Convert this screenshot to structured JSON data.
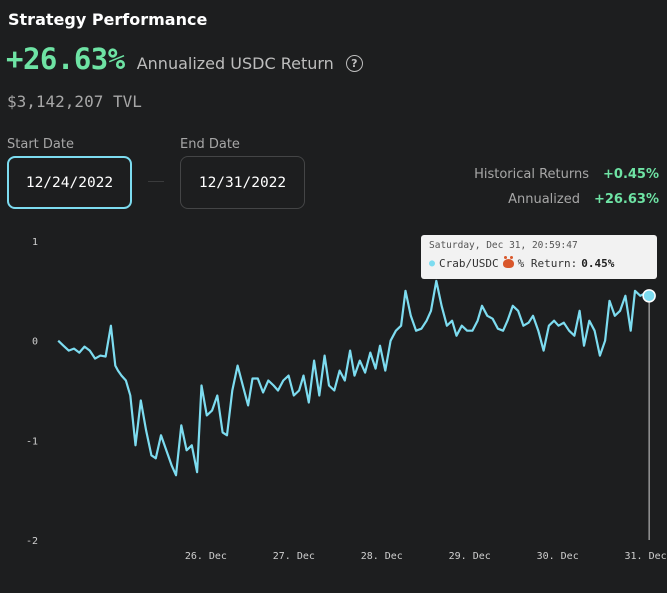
{
  "header": {
    "title": "Strategy Performance",
    "annualized_return": "+26.63%",
    "return_label": "Annualized USDC Return",
    "help_icon": "question-circle-icon",
    "tvl": "$3,142,207 TVL"
  },
  "dates": {
    "start_label": "Start Date",
    "start_value": "12/24/2022",
    "end_label": "End Date",
    "end_value": "12/31/2022"
  },
  "stats": {
    "historical_label": "Historical Returns",
    "historical_value": "+0.45%",
    "annualized_label": "Annualized",
    "annualized_value": "+26.63%"
  },
  "tooltip": {
    "time": "Saturday, Dec 31, 20:59:47",
    "series": "Crab/USDC",
    "icon": "crab-icon",
    "metric": "% Return:",
    "value": "0.45%"
  },
  "colors": {
    "line": "#7ddcf0",
    "positive": "#6ee3a4",
    "background": "#1d1e1f"
  },
  "chart_data": {
    "type": "line",
    "title": "",
    "xlabel": "",
    "ylabel": "",
    "grid": false,
    "ylim": [
      -2,
      1
    ],
    "yticks": [
      "1",
      "0",
      "-1",
      "-2"
    ],
    "xlim": [
      0.25,
      7.05
    ],
    "xticks": [
      {
        "x": 2,
        "label": "26. Dec"
      },
      {
        "x": 3,
        "label": "27. Dec"
      },
      {
        "x": 4,
        "label": "28. Dec"
      },
      {
        "x": 5,
        "label": "29. Dec"
      },
      {
        "x": 6,
        "label": "30. Dec"
      },
      {
        "x": 7,
        "label": "31. Dec"
      }
    ],
    "series": [
      {
        "name": "Crab/USDC",
        "x": [
          0.32,
          0.38,
          0.44,
          0.5,
          0.56,
          0.62,
          0.68,
          0.74,
          0.8,
          0.86,
          0.92,
          0.97,
          1.0,
          1.04,
          1.09,
          1.14,
          1.2,
          1.26,
          1.32,
          1.38,
          1.43,
          1.49,
          1.55,
          1.61,
          1.66,
          1.72,
          1.78,
          1.84,
          1.9,
          1.95,
          2.01,
          2.07,
          2.13,
          2.19,
          2.24,
          2.3,
          2.36,
          2.42,
          2.48,
          2.53,
          2.59,
          2.65,
          2.71,
          2.77,
          2.82,
          2.88,
          2.94,
          3.0,
          3.06,
          3.11,
          3.17,
          3.23,
          3.29,
          3.35,
          3.4,
          3.46,
          3.52,
          3.58,
          3.64,
          3.69,
          3.75,
          3.81,
          3.87,
          3.93,
          3.98,
          4.04,
          4.1,
          4.16,
          4.22,
          4.27,
          4.33,
          4.39,
          4.45,
          4.51,
          4.56,
          4.62,
          4.68,
          4.74,
          4.8,
          4.85,
          4.91,
          4.97,
          5.03,
          5.09,
          5.14,
          5.2,
          5.26,
          5.32,
          5.38,
          5.43,
          5.49,
          5.55,
          5.61,
          5.67,
          5.72,
          5.78,
          5.84,
          5.9,
          5.96,
          6.01,
          6.07,
          6.13,
          6.19,
          6.25,
          6.3,
          6.36,
          6.42,
          6.48,
          6.54,
          6.59,
          6.65,
          6.71,
          6.77,
          6.83,
          6.88,
          6.94,
          7.0,
          7.04
        ],
        "y": [
          0.0,
          -0.05,
          -0.1,
          -0.08,
          -0.12,
          -0.06,
          -0.1,
          -0.18,
          -0.15,
          -0.16,
          0.15,
          -0.25,
          -0.3,
          -0.35,
          -0.4,
          -0.55,
          -1.05,
          -0.6,
          -0.9,
          -1.15,
          -1.18,
          -0.95,
          -1.1,
          -1.25,
          -1.35,
          -0.85,
          -1.1,
          -1.05,
          -1.32,
          -0.45,
          -0.75,
          -0.7,
          -0.55,
          -0.92,
          -0.95,
          -0.5,
          -0.25,
          -0.45,
          -0.65,
          -0.38,
          -0.38,
          -0.52,
          -0.4,
          -0.45,
          -0.5,
          -0.4,
          -0.35,
          -0.55,
          -0.5,
          -0.35,
          -0.62,
          -0.2,
          -0.55,
          -0.15,
          -0.45,
          -0.5,
          -0.3,
          -0.4,
          -0.1,
          -0.35,
          -0.2,
          -0.32,
          -0.12,
          -0.28,
          -0.05,
          -0.3,
          0.0,
          0.1,
          0.15,
          0.5,
          0.25,
          0.1,
          0.12,
          0.2,
          0.3,
          0.6,
          0.35,
          0.15,
          0.2,
          0.05,
          0.15,
          0.1,
          0.1,
          0.2,
          0.35,
          0.25,
          0.22,
          0.12,
          0.1,
          0.2,
          0.35,
          0.3,
          0.15,
          0.18,
          0.25,
          0.1,
          -0.1,
          0.15,
          0.2,
          0.15,
          0.18,
          0.1,
          0.05,
          0.3,
          -0.05,
          0.2,
          0.1,
          -0.15,
          0.0,
          0.4,
          0.25,
          0.3,
          0.45,
          0.1,
          0.5,
          0.45,
          0.48,
          0.45
        ]
      }
    ]
  }
}
